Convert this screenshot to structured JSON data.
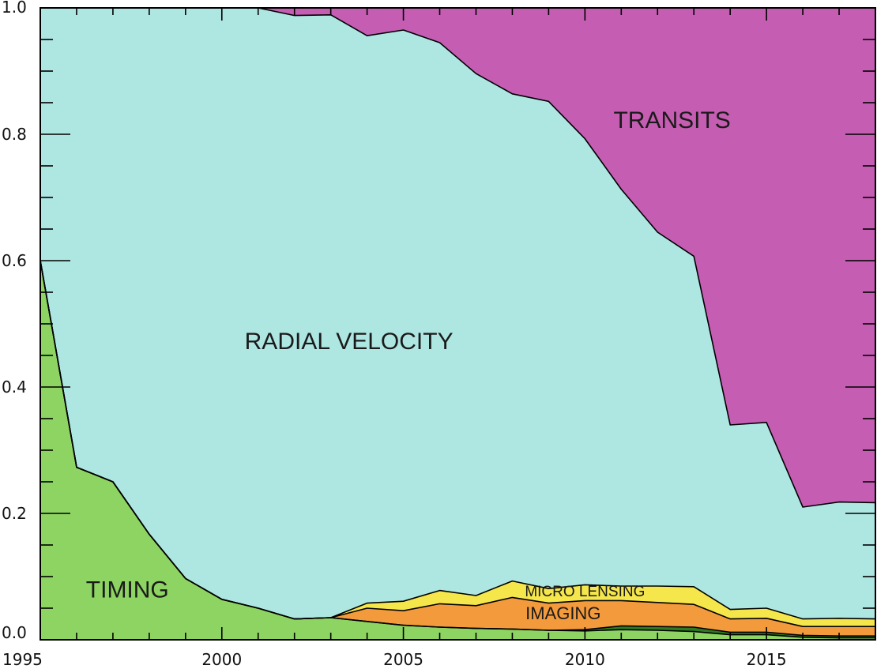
{
  "chart_data": {
    "type": "area",
    "stacked": true,
    "normalized": true,
    "x": [
      1995,
      1996,
      1997,
      1998,
      1999,
      2000,
      2001,
      2002,
      2003,
      2004,
      2005,
      2006,
      2007,
      2008,
      2009,
      2010,
      2011,
      2012,
      2013,
      2014,
      2015,
      2016,
      2017,
      2018
    ],
    "series": [
      {
        "name": "TIMING",
        "color": "#8ed462",
        "values": [
          0.6,
          0.273,
          0.25,
          0.167,
          0.097,
          0.064,
          0.05,
          0.033,
          0.035,
          0.029,
          0.023,
          0.02,
          0.018,
          0.017,
          0.015,
          0.014,
          0.016,
          0.015,
          0.013,
          0.008,
          0.008,
          0.004,
          0.003,
          0.003
        ]
      },
      {
        "name": "",
        "color": "#2e7a22",
        "values": [
          0,
          0,
          0,
          0,
          0,
          0,
          0,
          0,
          0,
          0,
          0,
          0,
          0,
          0,
          0,
          0.002,
          0.006,
          0.006,
          0.007,
          0.004,
          0.004,
          0.003,
          0.003,
          0.003
        ]
      },
      {
        "name": "IMAGING",
        "color": "#f39a3c",
        "values": [
          0,
          0,
          0,
          0,
          0,
          0,
          0,
          0,
          0,
          0.021,
          0.023,
          0.037,
          0.036,
          0.05,
          0.043,
          0.046,
          0.04,
          0.038,
          0.036,
          0.021,
          0.022,
          0.014,
          0.015,
          0.015
        ]
      },
      {
        "name": "MICRO LENSING",
        "color": "#f5e64c",
        "values": [
          0,
          0,
          0,
          0,
          0,
          0,
          0,
          0,
          0,
          0.008,
          0.015,
          0.021,
          0.016,
          0.026,
          0.023,
          0.025,
          0.023,
          0.026,
          0.028,
          0.015,
          0.016,
          0.012,
          0.013,
          0.012
        ]
      },
      {
        "name": "RADIAL VELOCITY",
        "color": "#aee6e2",
        "values": [
          0.4,
          0.727,
          0.75,
          0.833,
          0.903,
          0.936,
          0.95,
          0.955,
          0.954,
          0.898,
          0.904,
          0.867,
          0.826,
          0.771,
          0.771,
          0.706,
          0.628,
          0.56,
          0.523,
          0.292,
          0.294,
          0.177,
          0.184,
          0.184
        ]
      },
      {
        "name": "TRANSITS",
        "color": "#c55db3",
        "values": [
          0,
          0,
          0,
          0,
          0,
          0,
          0,
          0.012,
          0.011,
          0.044,
          0.035,
          0.055,
          0.104,
          0.136,
          0.148,
          0.207,
          0.287,
          0.355,
          0.393,
          0.66,
          0.656,
          0.79,
          0.782,
          0.783
        ]
      }
    ],
    "xlim": [
      1995,
      2018
    ],
    "ylim": [
      0,
      1
    ],
    "xticks": [
      1995,
      2000,
      2005,
      2010,
      2015
    ],
    "yticks": [
      0.0,
      0.2,
      0.4,
      0.6,
      0.8,
      1.0
    ],
    "ytick_labels": [
      "0.0",
      "0.2",
      "0.4",
      "0.6",
      "0.8",
      "1.0"
    ],
    "title": "",
    "xlabel": "",
    "ylabel": "",
    "grid": false,
    "annotations": [
      {
        "text": "TRANSITS",
        "x": 2012.4,
        "y": 0.82,
        "size": "large"
      },
      {
        "text": "RADIAL VELOCITY",
        "x": 2003.5,
        "y": 0.47,
        "size": "large"
      },
      {
        "text": "TIMING",
        "x": 1997.4,
        "y": 0.077,
        "size": "large"
      },
      {
        "text": "MICRO LENSING",
        "x": 2010.0,
        "y": 0.075,
        "size": "small"
      },
      {
        "text": "IMAGING",
        "x": 2009.4,
        "y": 0.04,
        "size": "medium"
      }
    ]
  }
}
